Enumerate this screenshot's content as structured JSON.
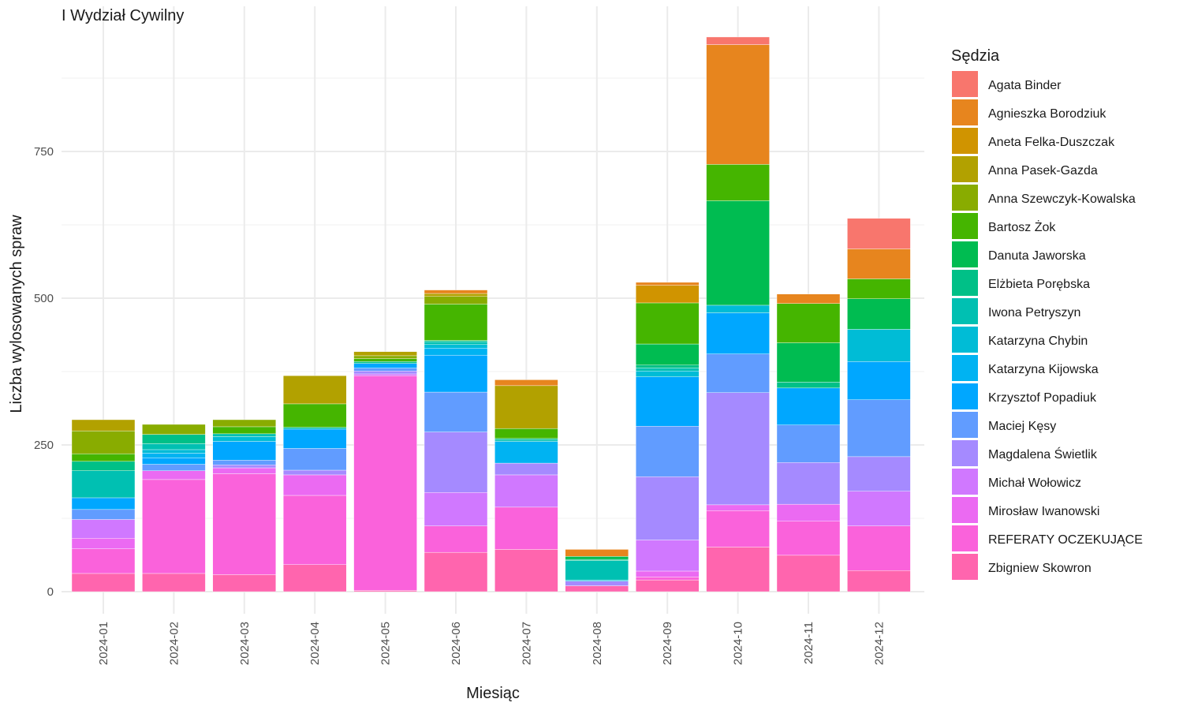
{
  "chart_data": {
    "type": "bar",
    "stacked": true,
    "title": "I Wydział Cywilny",
    "xlabel": "Miesiąc",
    "ylabel": "Liczba wylosowanych spraw",
    "ylim": [
      0,
      950
    ],
    "yticks": [
      0,
      250,
      500,
      750
    ],
    "grid": true,
    "legend_title": "Sędzia",
    "legend_position": "right",
    "categories": [
      "2024-01",
      "2024-02",
      "2024-03",
      "2024-04",
      "2024-05",
      "2024-06",
      "2024-07",
      "2024-08",
      "2024-09",
      "2024-10",
      "2024-11",
      "2024-12"
    ],
    "series": [
      {
        "name": "Agata Binder",
        "color": "#F8766D",
        "values": [
          0,
          0,
          0,
          0,
          0,
          0,
          0,
          0,
          0,
          13,
          0,
          52
        ]
      },
      {
        "name": "Agnieszka Borodziuk",
        "color": "#E7851E",
        "values": [
          0,
          0,
          0,
          0,
          0,
          6,
          10,
          12,
          5,
          204,
          16,
          51
        ]
      },
      {
        "name": "Aneta Felka-Duszczak",
        "color": "#D09400",
        "values": [
          0,
          0,
          0,
          0,
          0,
          0,
          0,
          0,
          30,
          0,
          0,
          0
        ]
      },
      {
        "name": "Anna Pasek-Gazda",
        "color": "#B2A100",
        "values": [
          19,
          0,
          0,
          48,
          7,
          5,
          73,
          0,
          0,
          0,
          0,
          0
        ]
      },
      {
        "name": "Anna Szewczyk-Kowalska",
        "color": "#89AC00",
        "values": [
          39,
          17,
          12,
          0,
          5,
          13,
          0,
          0,
          0,
          0,
          0,
          0
        ]
      },
      {
        "name": "Bartosz Żok",
        "color": "#45B500",
        "values": [
          13,
          0,
          12,
          40,
          5,
          62,
          17,
          0,
          70,
          62,
          67,
          34
        ]
      },
      {
        "name": "Danuta Jaworska",
        "color": "#00BC51",
        "values": [
          0,
          0,
          0,
          0,
          0,
          0,
          0,
          5,
          36,
          178,
          67,
          52
        ]
      },
      {
        "name": "Elżbieta Porębska",
        "color": "#00C087",
        "values": [
          16,
          16,
          0,
          0,
          3,
          2,
          2,
          2,
          5,
          0,
          10,
          0
        ]
      },
      {
        "name": "Iwona Petryszyn",
        "color": "#00C0B2",
        "values": [
          46,
          10,
          5,
          3,
          0,
          5,
          3,
          33,
          5,
          0,
          0,
          0
        ]
      },
      {
        "name": "Katarzyna Chybin",
        "color": "#00BCD6",
        "values": [
          0,
          6,
          8,
          0,
          0,
          6,
          0,
          2,
          10,
          13,
          0,
          55
        ]
      },
      {
        "name": "Katarzyna Kijowska",
        "color": "#00B3F2",
        "values": [
          0,
          8,
          0,
          0,
          0,
          12,
          37,
          0,
          0,
          0,
          0,
          0
        ]
      },
      {
        "name": "Krzysztof Popadiuk",
        "color": "#00A7FF",
        "values": [
          20,
          11,
          32,
          33,
          8,
          63,
          0,
          0,
          84,
          70,
          63,
          65
        ]
      },
      {
        "name": "Maciej Kęsy",
        "color": "#619CFF",
        "values": [
          17,
          11,
          8,
          37,
          5,
          68,
          0,
          0,
          86,
          66,
          64,
          97
        ]
      },
      {
        "name": "Magdalena Świetlik",
        "color": "#A58AFF",
        "values": [
          0,
          0,
          5,
          8,
          5,
          103,
          20,
          8,
          108,
          191,
          71,
          59
        ]
      },
      {
        "name": "Michał Wołowicz",
        "color": "#D078FF",
        "values": [
          32,
          0,
          0,
          0,
          3,
          57,
          55,
          0,
          53,
          0,
          0,
          59
        ]
      },
      {
        "name": "Mirosław Iwanowski",
        "color": "#EB6AF2",
        "values": [
          18,
          15,
          10,
          35,
          0,
          0,
          0,
          0,
          10,
          10,
          29,
          0
        ]
      },
      {
        "name": "REFERATY OCZEKUJĄCE",
        "color": "#FA62DB",
        "values": [
          42,
          160,
          172,
          118,
          366,
          45,
          72,
          0,
          5,
          62,
          58,
          76
        ]
      },
      {
        "name": "Zbigniew Skowron",
        "color": "#FF65AE",
        "values": [
          31,
          31,
          29,
          46,
          2,
          67,
          72,
          10,
          20,
          76,
          62,
          36
        ]
      }
    ]
  }
}
